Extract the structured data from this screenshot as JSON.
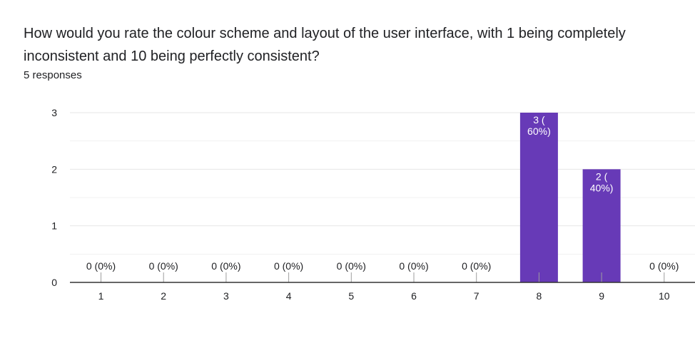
{
  "question": "How would you rate the colour scheme and layout of the user interface, with 1 being completely inconsistent and 10 being perfectly consistent?",
  "responses_label": "5 responses",
  "colors": {
    "bar": "#673ab7",
    "grid": "#e6e6e6",
    "axis": "#333333",
    "text": "#202124"
  },
  "chart_data": {
    "type": "bar",
    "categories": [
      "1",
      "2",
      "3",
      "4",
      "5",
      "6",
      "7",
      "8",
      "9",
      "10"
    ],
    "values": [
      0,
      0,
      0,
      0,
      0,
      0,
      0,
      3,
      2,
      0
    ],
    "data_labels": [
      "0 (0%)",
      "0 (0%)",
      "0 (0%)",
      "0 (0%)",
      "0 (0%)",
      "0 (0%)",
      "0 (0%)",
      "3 (\n60%)",
      "2 (\n40%)",
      "0 (0%)"
    ],
    "title": "",
    "xlabel": "",
    "ylabel": "",
    "ylim": [
      0,
      3
    ],
    "yticks": [
      0,
      1,
      2,
      3
    ],
    "grid": true
  }
}
